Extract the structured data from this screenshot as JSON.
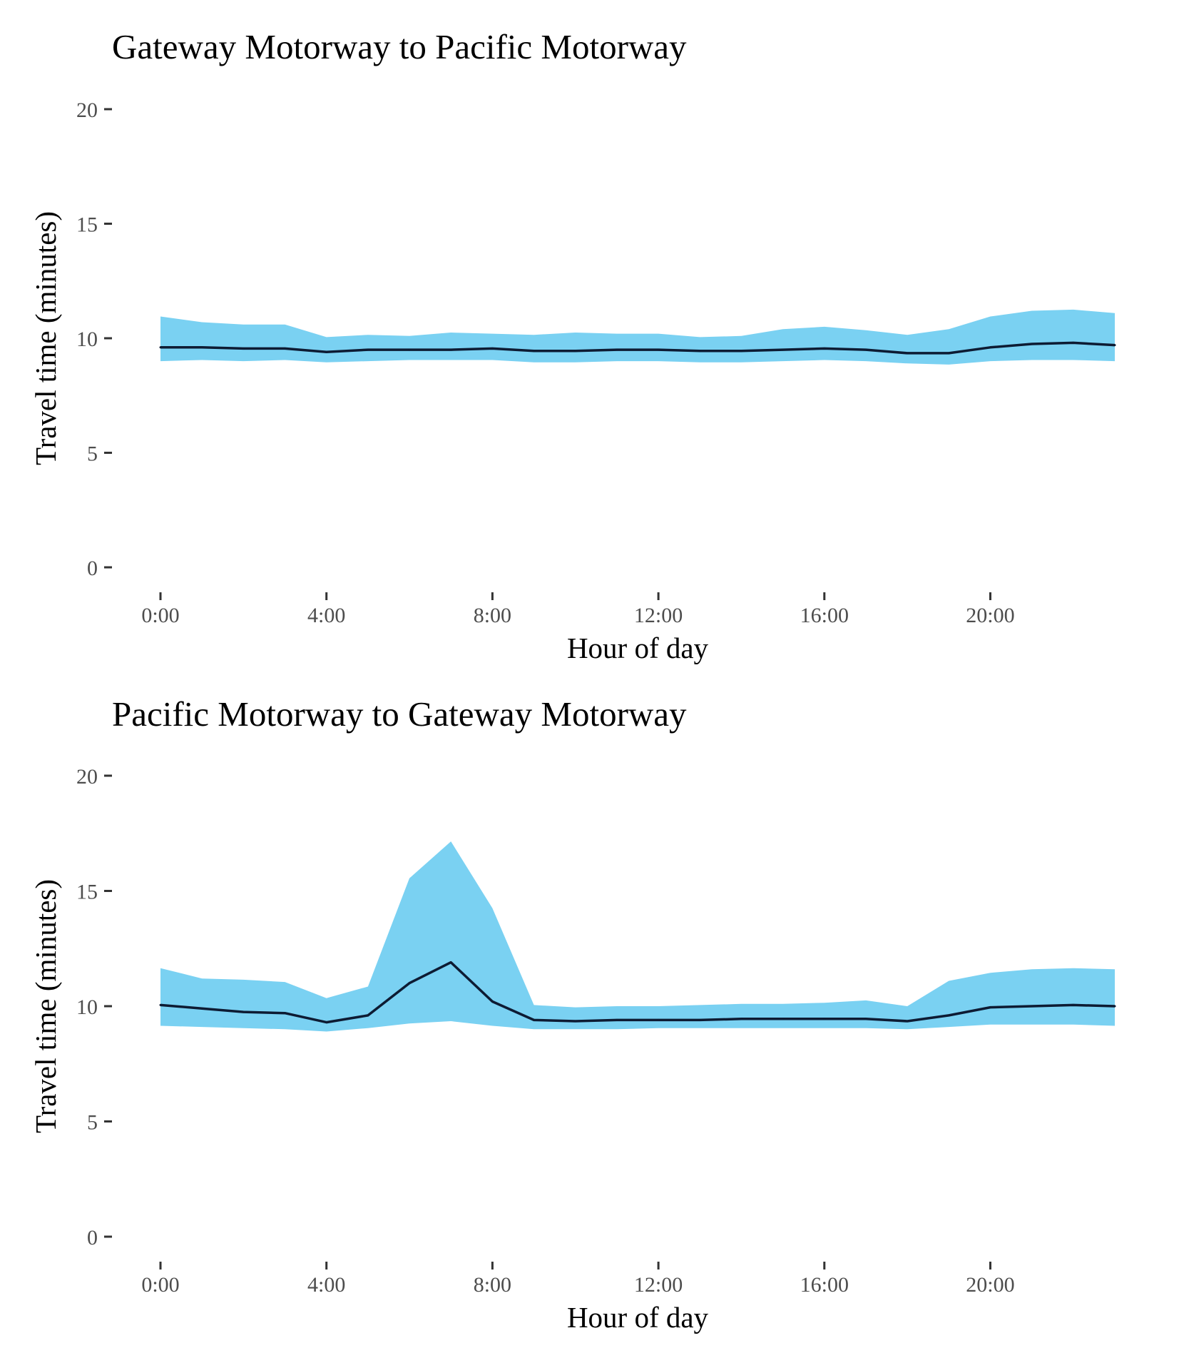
{
  "chart_data": [
    {
      "type": "area",
      "title": "Gateway Motorway to Pacific Motorway",
      "xlabel": "Hour of day",
      "ylabel": "Travel time (minutes)",
      "ylim": [
        0,
        20
      ],
      "xlim": [
        0,
        23
      ],
      "yticks": [
        0,
        5,
        10,
        15,
        20
      ],
      "ytick_labels": [
        "0",
        "5",
        "10",
        "15",
        "20"
      ],
      "xticks": [
        0,
        4,
        8,
        12,
        16,
        20
      ],
      "xtick_labels": [
        "0:00",
        "4:00",
        "8:00",
        "12:00",
        "16:00",
        "20:00"
      ],
      "grid": false,
      "band_color": "#7ad1f2",
      "line_color": "#0d1b33",
      "x": [
        0,
        1,
        2,
        3,
        4,
        5,
        6,
        7,
        8,
        9,
        10,
        11,
        12,
        13,
        14,
        15,
        16,
        17,
        18,
        19,
        20,
        21,
        22,
        23
      ],
      "series": [
        {
          "kind": "band-upper",
          "values": [
            10.95,
            10.7,
            10.6,
            10.6,
            10.05,
            10.15,
            10.1,
            10.25,
            10.2,
            10.15,
            10.25,
            10.2,
            10.2,
            10.05,
            10.1,
            10.4,
            10.5,
            10.35,
            10.15,
            10.4,
            10.95,
            11.2,
            11.25,
            11.1
          ]
        },
        {
          "kind": "line",
          "values": [
            9.6,
            9.6,
            9.55,
            9.55,
            9.4,
            9.5,
            9.5,
            9.5,
            9.55,
            9.45,
            9.45,
            9.5,
            9.5,
            9.45,
            9.45,
            9.5,
            9.55,
            9.5,
            9.35,
            9.35,
            9.6,
            9.75,
            9.8,
            9.7
          ]
        },
        {
          "kind": "band-lower",
          "values": [
            9.0,
            9.05,
            9.0,
            9.05,
            8.95,
            9.0,
            9.05,
            9.05,
            9.05,
            8.95,
            8.95,
            9.0,
            9.0,
            8.95,
            8.95,
            9.0,
            9.05,
            9.0,
            8.9,
            8.85,
            9.0,
            9.05,
            9.05,
            9.0
          ]
        }
      ]
    },
    {
      "type": "area",
      "title": "Pacific Motorway to Gateway Motorway",
      "xlabel": "Hour of day",
      "ylabel": "Travel time (minutes)",
      "ylim": [
        0,
        20
      ],
      "xlim": [
        0,
        23
      ],
      "yticks": [
        0,
        5,
        10,
        15,
        20
      ],
      "ytick_labels": [
        "0",
        "5",
        "10",
        "15",
        "20"
      ],
      "xticks": [
        0,
        4,
        8,
        12,
        16,
        20
      ],
      "xtick_labels": [
        "0:00",
        "4:00",
        "8:00",
        "12:00",
        "16:00",
        "20:00"
      ],
      "grid": false,
      "band_color": "#7ad1f2",
      "line_color": "#0d1b33",
      "x": [
        0,
        1,
        2,
        3,
        4,
        5,
        6,
        7,
        8,
        9,
        10,
        11,
        12,
        13,
        14,
        15,
        16,
        17,
        18,
        19,
        20,
        21,
        22,
        23
      ],
      "series": [
        {
          "kind": "band-upper",
          "values": [
            11.65,
            11.2,
            11.15,
            11.05,
            10.35,
            10.85,
            15.55,
            17.15,
            14.25,
            10.05,
            9.95,
            10.0,
            10.0,
            10.05,
            10.1,
            10.1,
            10.15,
            10.25,
            10.0,
            11.1,
            11.45,
            11.6,
            11.65,
            11.6
          ]
        },
        {
          "kind": "line",
          "values": [
            10.05,
            9.9,
            9.75,
            9.7,
            9.3,
            9.6,
            11.0,
            11.9,
            10.2,
            9.4,
            9.35,
            9.4,
            9.4,
            9.4,
            9.45,
            9.45,
            9.45,
            9.45,
            9.35,
            9.6,
            9.95,
            10.0,
            10.05,
            10.0
          ]
        },
        {
          "kind": "band-lower",
          "values": [
            9.15,
            9.1,
            9.05,
            9.0,
            8.9,
            9.05,
            9.25,
            9.35,
            9.15,
            9.0,
            9.0,
            9.0,
            9.05,
            9.05,
            9.05,
            9.05,
            9.05,
            9.05,
            9.0,
            9.1,
            9.2,
            9.2,
            9.2,
            9.15
          ]
        }
      ]
    }
  ]
}
